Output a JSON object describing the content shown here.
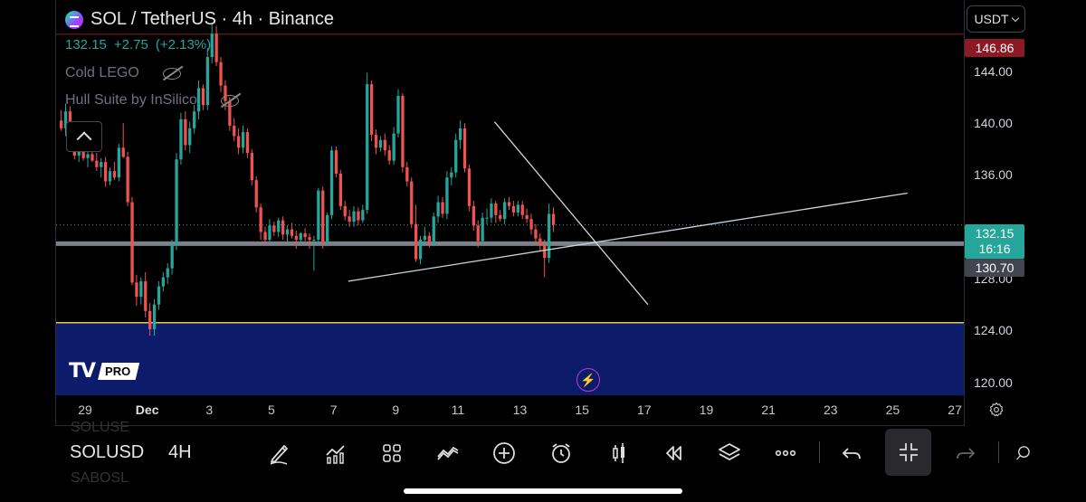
{
  "header": {
    "symbol_title": "SOL / TetherUS · 4h · Binance",
    "last_price": "132.15",
    "change": "+2.75",
    "change_pct": "(+2.13%)",
    "indicators": [
      {
        "name": "Cold LEGO",
        "icon": "eye-off-icon"
      },
      {
        "name": "Hull Suite by InSilico",
        "icon": "eye-off-icon"
      }
    ]
  },
  "price_scale": {
    "currency_button": "USDT",
    "ticks": [
      "144.00",
      "140.00",
      "136.00",
      "128.00",
      "124.00",
      "120.00"
    ],
    "tag_high": "146.86",
    "tag_last": "132.15",
    "tag_countdown": "16:16",
    "tag_level": "130.70"
  },
  "time_axis": {
    "labels": [
      "29",
      "Dec",
      "3",
      "5",
      "7",
      "9",
      "11",
      "13",
      "15",
      "17",
      "19",
      "21",
      "23",
      "25",
      "27"
    ]
  },
  "branding": {
    "pro_badge": "PRO"
  },
  "toolbar": {
    "symbol": "SOLUSD",
    "interval": "4H",
    "ghost_above": "SOLUSE",
    "ghost_below": "SABOSL",
    "tools": [
      "pencil-icon",
      "indicators-icon",
      "layout-grid-icon",
      "compare-icon",
      "add-icon",
      "alert-clock-icon",
      "candles-icon",
      "replay-icon",
      "layers-icon",
      "more-icon",
      "undo-icon",
      "fullscreen-exit-icon",
      "redo-icon"
    ]
  },
  "colors": {
    "up": "#26a69a",
    "down": "#ef5350",
    "zone": "#0d1b6b",
    "zone_line": "#e6c84a",
    "high_line": "#8b1a24",
    "trendline": "#d0d4dc",
    "level_band": "#9598a1"
  },
  "chart_data": {
    "type": "candlestick",
    "price_range": [
      119,
      149.5
    ],
    "ticks": [
      120,
      124,
      128,
      136,
      140,
      144
    ],
    "levels": {
      "high": 146.86,
      "last": 132.15,
      "support": 130.7,
      "zone_top": 124.6,
      "zone_bottom": 119
    },
    "candles": [
      [
        140.2,
        141.0,
        139.4,
        139.6
      ],
      [
        139.6,
        141.5,
        139.0,
        140.9
      ],
      [
        140.9,
        141.3,
        138.3,
        138.7
      ],
      [
        138.7,
        139.2,
        137.2,
        137.5
      ],
      [
        137.5,
        138.6,
        137.0,
        138.2
      ],
      [
        138.2,
        138.5,
        137.1,
        137.3
      ],
      [
        137.3,
        138.0,
        136.6,
        137.6
      ],
      [
        137.6,
        138.2,
        137.0,
        137.1
      ],
      [
        137.1,
        137.7,
        136.3,
        136.6
      ],
      [
        136.6,
        137.3,
        135.8,
        137.0
      ],
      [
        137.0,
        137.4,
        135.1,
        135.5
      ],
      [
        135.5,
        136.6,
        135.2,
        136.3
      ],
      [
        136.3,
        137.0,
        135.6,
        135.8
      ],
      [
        135.8,
        138.4,
        135.5,
        138.1
      ],
      [
        138.1,
        140.0,
        137.3,
        137.4
      ],
      [
        137.4,
        137.8,
        133.6,
        133.9
      ],
      [
        133.9,
        134.3,
        127.5,
        127.7
      ],
      [
        127.7,
        128.3,
        125.9,
        126.6
      ],
      [
        126.6,
        128.1,
        126.0,
        127.8
      ],
      [
        127.8,
        128.5,
        125.0,
        125.5
      ],
      [
        125.5,
        126.1,
        123.6,
        124.1
      ],
      [
        124.1,
        126.4,
        123.6,
        126.0
      ],
      [
        126.0,
        127.8,
        125.6,
        127.4
      ],
      [
        127.4,
        128.5,
        127.0,
        128.1
      ],
      [
        128.1,
        129.2,
        127.6,
        128.8
      ],
      [
        128.8,
        131.0,
        128.3,
        130.6
      ],
      [
        130.6,
        137.7,
        130.2,
        137.2
      ],
      [
        137.2,
        140.8,
        136.8,
        140.3
      ],
      [
        140.3,
        140.9,
        137.9,
        138.3
      ],
      [
        138.3,
        140.1,
        137.7,
        139.6
      ],
      [
        139.6,
        141.4,
        139.2,
        140.9
      ],
      [
        140.9,
        143.3,
        140.3,
        142.7
      ],
      [
        142.7,
        143.0,
        141.0,
        141.4
      ],
      [
        141.4,
        145.8,
        141.0,
        145.1
      ],
      [
        145.1,
        147.7,
        144.6,
        146.9
      ],
      [
        146.9,
        147.5,
        144.4,
        144.7
      ],
      [
        144.7,
        145.1,
        142.4,
        142.9
      ],
      [
        142.9,
        143.3,
        141.0,
        141.7
      ],
      [
        141.7,
        142.0,
        139.4,
        139.8
      ],
      [
        139.8,
        140.4,
        138.6,
        139.0
      ],
      [
        139.0,
        139.6,
        137.6,
        138.1
      ],
      [
        138.1,
        139.8,
        137.7,
        139.3
      ],
      [
        139.3,
        139.6,
        137.3,
        137.7
      ],
      [
        137.7,
        138.0,
        135.2,
        135.6
      ],
      [
        135.6,
        135.9,
        133.1,
        133.5
      ],
      [
        133.5,
        133.8,
        131.0,
        131.6
      ],
      [
        131.6,
        132.0,
        130.6,
        131.0
      ],
      [
        131.0,
        132.6,
        130.7,
        132.1
      ],
      [
        132.1,
        132.4,
        131.3,
        131.6
      ],
      [
        131.6,
        132.7,
        131.2,
        132.5
      ],
      [
        132.5,
        132.8,
        131.0,
        131.4
      ],
      [
        131.4,
        132.1,
        130.8,
        131.8
      ],
      [
        131.8,
        132.3,
        131.1,
        131.3
      ],
      [
        131.3,
        131.7,
        130.3,
        131.0
      ],
      [
        131.0,
        131.6,
        130.6,
        131.5
      ],
      [
        131.5,
        131.9,
        130.9,
        131.2
      ],
      [
        131.2,
        131.5,
        130.3,
        131.0
      ],
      [
        131.0,
        131.3,
        128.6,
        131.0
      ],
      [
        131.0,
        135.0,
        130.6,
        134.8
      ],
      [
        134.8,
        135.1,
        130.3,
        130.8
      ],
      [
        130.8,
        133.1,
        130.5,
        132.9
      ],
      [
        132.9,
        138.2,
        132.6,
        137.9
      ],
      [
        137.9,
        138.2,
        135.8,
        136.1
      ],
      [
        136.1,
        136.4,
        133.3,
        133.6
      ],
      [
        133.6,
        134.0,
        132.5,
        132.8
      ],
      [
        132.8,
        133.3,
        132.0,
        132.4
      ],
      [
        132.4,
        133.6,
        132.0,
        133.2
      ],
      [
        133.2,
        133.5,
        132.1,
        132.5
      ],
      [
        132.5,
        133.7,
        132.3,
        133.3
      ],
      [
        133.3,
        143.9,
        133.0,
        143.0
      ],
      [
        143.0,
        143.3,
        138.6,
        139.1
      ],
      [
        139.1,
        139.5,
        137.6,
        138.1
      ],
      [
        138.1,
        139.0,
        137.8,
        138.7
      ],
      [
        138.7,
        139.2,
        137.5,
        137.9
      ],
      [
        137.9,
        138.3,
        136.8,
        137.1
      ],
      [
        137.1,
        139.7,
        136.8,
        139.2
      ],
      [
        139.2,
        142.6,
        138.9,
        142.1
      ],
      [
        142.1,
        142.3,
        136.2,
        136.6
      ],
      [
        136.6,
        137.0,
        135.1,
        135.5
      ],
      [
        135.5,
        135.8,
        131.9,
        132.2
      ],
      [
        132.2,
        133.7,
        129.3,
        129.5
      ],
      [
        129.5,
        131.3,
        129.1,
        131.0
      ],
      [
        131.0,
        132.0,
        130.5,
        131.3
      ],
      [
        131.3,
        131.6,
        130.4,
        130.7
      ],
      [
        130.7,
        133.1,
        130.5,
        132.8
      ],
      [
        132.8,
        134.4,
        132.3,
        133.9
      ],
      [
        133.9,
        134.3,
        132.7,
        133.0
      ],
      [
        133.0,
        136.3,
        132.6,
        135.8
      ],
      [
        135.8,
        136.6,
        135.2,
        136.2
      ],
      [
        136.2,
        139.2,
        135.8,
        138.7
      ],
      [
        138.7,
        140.2,
        138.0,
        139.6
      ],
      [
        139.6,
        140.0,
        136.2,
        136.5
      ],
      [
        136.5,
        136.8,
        133.2,
        133.6
      ],
      [
        133.6,
        134.0,
        131.7,
        132.1
      ],
      [
        132.1,
        132.5,
        130.4,
        130.9
      ],
      [
        130.9,
        133.1,
        130.6,
        132.7
      ],
      [
        132.7,
        133.4,
        132.2,
        132.7
      ],
      [
        132.7,
        134.2,
        132.3,
        133.8
      ],
      [
        133.8,
        134.0,
        132.3,
        132.9
      ],
      [
        132.9,
        133.3,
        132.4,
        132.6
      ],
      [
        132.6,
        134.2,
        132.2,
        133.9
      ],
      [
        133.9,
        134.3,
        133.3,
        133.6
      ],
      [
        133.6,
        134.0,
        132.8,
        133.1
      ],
      [
        133.1,
        134.0,
        132.8,
        133.7
      ],
      [
        133.7,
        134.0,
        132.6,
        132.9
      ],
      [
        132.9,
        133.4,
        132.3,
        132.6
      ],
      [
        132.6,
        133.0,
        131.4,
        131.8
      ],
      [
        131.8,
        132.2,
        130.6,
        131.1
      ],
      [
        131.1,
        131.5,
        130.1,
        130.6
      ],
      [
        130.6,
        131.0,
        128.1,
        129.6
      ],
      [
        129.6,
        133.8,
        129.2,
        133.0
      ],
      [
        133.0,
        133.5,
        131.6,
        132.15
      ]
    ],
    "trendlines": [
      {
        "from": [
          0.322,
          127.8
        ],
        "to": [
          0.938,
          134.6
        ]
      },
      {
        "from": [
          0.483,
          140.1
        ],
        "to": [
          0.652,
          126.0
        ]
      }
    ]
  }
}
